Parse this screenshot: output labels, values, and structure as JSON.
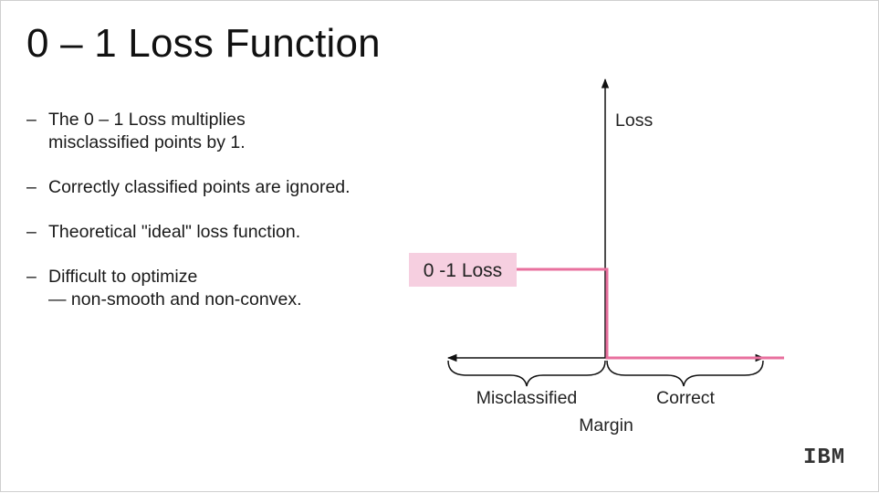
{
  "slide": {
    "title": "0 – 1 Loss Function",
    "bullets": [
      {
        "dash": "–",
        "lines": [
          "The 0 – 1 Loss multiplies",
          "misclassified points by 1."
        ]
      },
      {
        "dash": "–",
        "lines": [
          "Correctly classified points are ignored."
        ]
      },
      {
        "dash": "–",
        "lines": [
          "Theoretical \"ideal\" loss function."
        ]
      },
      {
        "dash": "–",
        "lines": [
          "Difficult to optimize",
          "— non-smooth and non-convex."
        ]
      }
    ],
    "logo_text": "IBM"
  },
  "diagram": {
    "y_axis_label": "Loss",
    "x_axis_label": "Margin",
    "left_region_label": "Misclassified",
    "right_region_label": "Correct",
    "curve_label": "0 -1 Loss",
    "colors": {
      "curve": "#e8709e",
      "label_highlight": "#f6cfe0",
      "axis": "#111111"
    }
  }
}
